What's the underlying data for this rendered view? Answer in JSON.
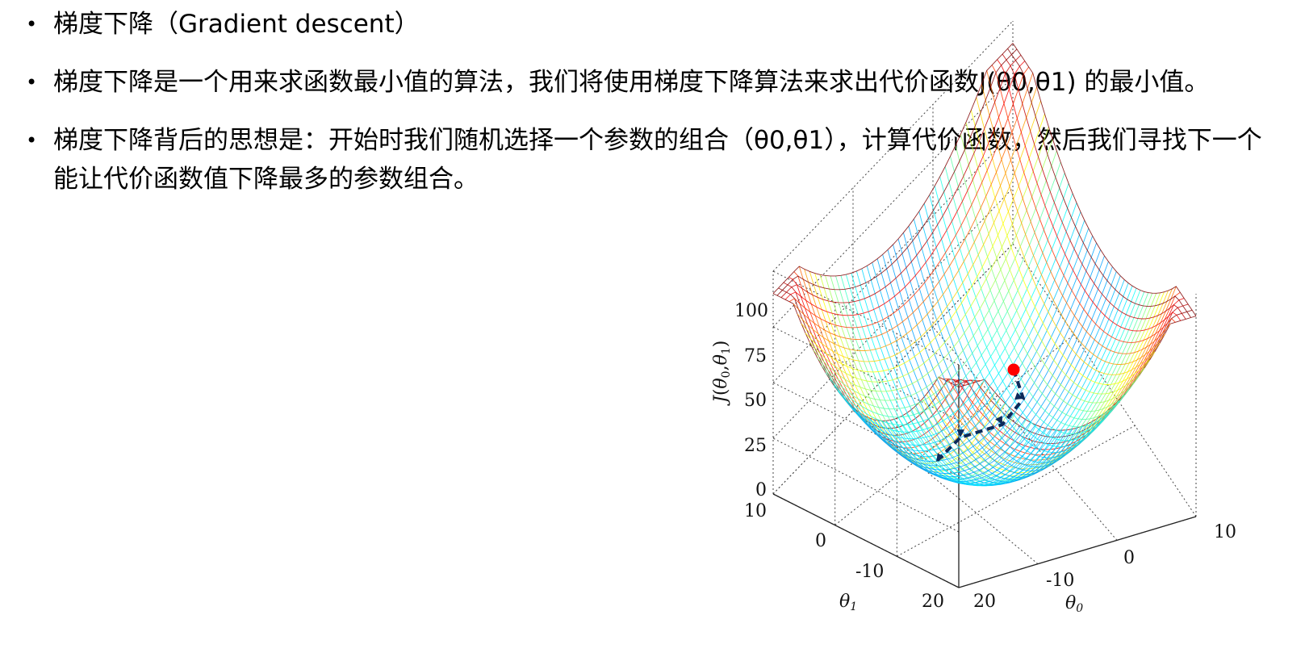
{
  "bullets": [
    "梯度下降（Gradient descent）",
    "梯度下降是一个用来求函数最小值的算法，我们将使用梯度下降算法来求出代价函数J(θ0,θ1) 的最小值。",
    "梯度下降背后的思想是：开始时我们随机选择一个参数的组合（θ0,θ1），计算代价函数，然后我们寻找下一个能让代价函数值下降最多的参数组合。"
  ],
  "bullet_marker": "•",
  "figure": {
    "z_axis_label": "J(θ0,θ1)",
    "z_ticks": [
      "100",
      "75",
      "50",
      "25",
      "0"
    ],
    "left_axis_ticks": [
      "10",
      "0",
      "-10",
      "20"
    ],
    "left_axis_label": "θ1",
    "right_axis_ticks": [
      "10",
      "0",
      "-10",
      "20"
    ],
    "right_axis_label": "θ0",
    "start_point_color": "#ff0000",
    "path_color": "#0d2a5a",
    "colormap": "jet"
  }
}
